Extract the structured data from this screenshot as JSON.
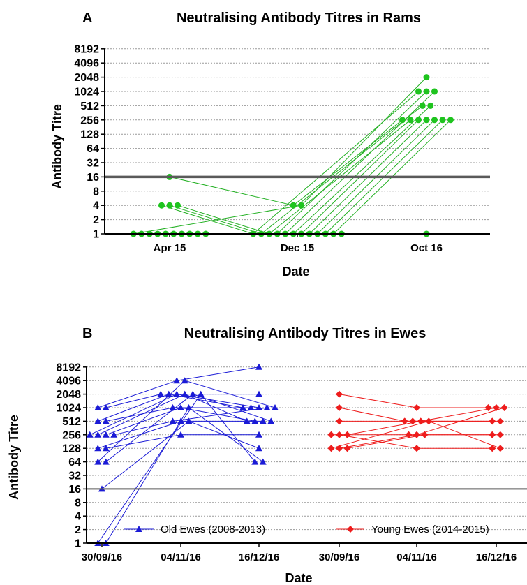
{
  "chart_data": [
    {
      "panel": "A",
      "type": "scatter",
      "title": "Neutralising Antibody Titres in Rams",
      "xlabel": "Date",
      "ylabel": "Antibody Titre",
      "y_scale": "log2",
      "yticks": [
        "1",
        "2",
        "4",
        "8",
        "16",
        "32",
        "64",
        "128",
        "256",
        "512",
        "1024",
        "2048",
        "4096",
        "8192"
      ],
      "ylim": [
        1,
        8192
      ],
      "categories": [
        "Apr 15",
        "Dec 15",
        "Oct 16"
      ],
      "threshold": 16,
      "grid": true,
      "color": "#1ec41e",
      "line_color": "#22b022",
      "series": [
        {
          "values": [
            16,
            4,
            256
          ]
        },
        {
          "values": [
            4,
            1,
            1024
          ]
        },
        {
          "values": [
            4,
            1,
            512
          ]
        },
        {
          "values": [
            4,
            1,
            256
          ]
        },
        {
          "values": [
            1,
            4,
            2048
          ]
        },
        {
          "values": [
            1,
            1,
            1024
          ]
        },
        {
          "values": [
            1,
            1,
            1024
          ]
        },
        {
          "values": [
            1,
            1,
            512
          ]
        },
        {
          "values": [
            1,
            1,
            256
          ]
        },
        {
          "values": [
            1,
            1,
            256
          ]
        },
        {
          "values": [
            1,
            1,
            256
          ]
        },
        {
          "values": [
            1,
            1,
            256
          ]
        },
        {
          "values": [
            1,
            1,
            256
          ]
        },
        {
          "values": [
            1,
            1,
            1
          ]
        }
      ]
    },
    {
      "panel": "B",
      "type": "scatter",
      "title": "Neutralising Antibody Titres in Ewes",
      "xlabel": "Date",
      "ylabel": "Antibody Titre",
      "y_scale": "log2",
      "yticks": [
        "1",
        "2",
        "4",
        "8",
        "16",
        "32",
        "64",
        "128",
        "256",
        "512",
        "1024",
        "2048",
        "4096",
        "8192"
      ],
      "ylim": [
        1,
        8192
      ],
      "categories": [
        "30/09/16",
        "04/11/16",
        "16/12/16",
        "30/09/16",
        "04/11/16",
        "16/12/16"
      ],
      "threshold": 16,
      "grid": true,
      "legend_position": "bottom",
      "groups": [
        {
          "name": "Old Ewes (2008-2013)",
          "marker": "triangle",
          "color": "#1a1ad6",
          "category_offset": 0,
          "series": [
            {
              "values": [
                1024,
                4096,
                8192
              ]
            },
            {
              "values": [
                1024,
                2048,
                2048
              ]
            },
            {
              "values": [
                512,
                2048,
                1024
              ]
            },
            {
              "values": [
                512,
                1024,
                1024
              ]
            },
            {
              "values": [
                256,
                2048,
                1024
              ]
            },
            {
              "values": [
                256,
                2048,
                512
              ]
            },
            {
              "values": [
                256,
                1024,
                512
              ]
            },
            {
              "values": [
                256,
                512,
                1024
              ]
            },
            {
              "values": [
                128,
                512,
                512
              ]
            },
            {
              "values": [
                128,
                256,
                256
              ]
            },
            {
              "values": [
                64,
                4096,
                1024
              ]
            },
            {
              "values": [
                64,
                2048,
                512
              ]
            },
            {
              "values": [
                16,
                512,
                128
              ]
            },
            {
              "values": [
                1,
                2048,
                64
              ]
            },
            {
              "values": [
                1,
                1024,
                64
              ]
            }
          ]
        },
        {
          "name": "Young Ewes (2014-2015)",
          "marker": "diamond",
          "color": "#ee1c1c",
          "category_offset": 3,
          "series": [
            {
              "values": [
                2048,
                1024,
                1024
              ]
            },
            {
              "values": [
                1024,
                512,
                512
              ]
            },
            {
              "values": [
                512,
                512,
                512
              ]
            },
            {
              "values": [
                256,
                256,
                256
              ]
            },
            {
              "values": [
                256,
                128,
                128
              ]
            },
            {
              "values": [
                256,
                512,
                1024
              ]
            },
            {
              "values": [
                128,
                512,
                128
              ]
            },
            {
              "values": [
                128,
                256,
                1024
              ]
            },
            {
              "values": [
                128,
                256,
                256
              ]
            }
          ]
        }
      ]
    }
  ]
}
